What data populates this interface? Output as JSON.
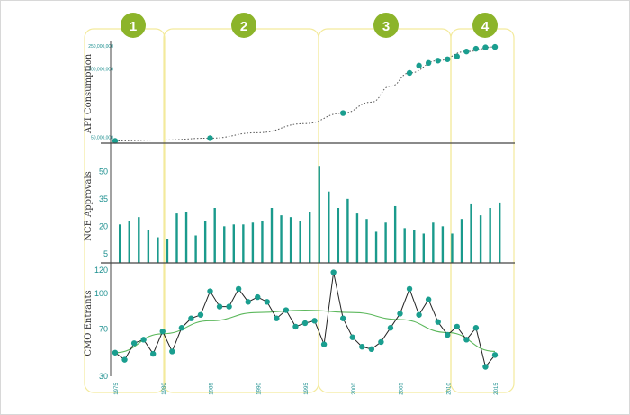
{
  "colors": {
    "teal": "#1a9e8f",
    "bar": "#1a9a8c",
    "trend": "#5cb85c",
    "region_border": "#f3ea9c",
    "badge": "#8cb42a"
  },
  "phase_labels": [
    "1",
    "2",
    "3",
    "4"
  ],
  "chart_data": [
    {
      "type": "scatter",
      "panel": "api",
      "ylabel": "API Consumption",
      "yticks": [
        "250,000,000",
        "200,000,000",
        "50,000,000"
      ],
      "ytick_values": [
        250000000,
        200000000,
        50000000
      ],
      "ylim": [
        35000000,
        260000000
      ],
      "xlim": [
        1975,
        2015
      ],
      "points": [
        {
          "x": 1975,
          "y": 40000000
        },
        {
          "x": 1985,
          "y": 46000000
        },
        {
          "x": 1999,
          "y": 101000000
        },
        {
          "x": 2006,
          "y": 189000000
        },
        {
          "x": 2007,
          "y": 205000000
        },
        {
          "x": 2008,
          "y": 211000000
        },
        {
          "x": 2009,
          "y": 216000000
        },
        {
          "x": 2010,
          "y": 219000000
        },
        {
          "x": 2011,
          "y": 225000000
        },
        {
          "x": 2012,
          "y": 236000000
        },
        {
          "x": 2013,
          "y": 242000000
        },
        {
          "x": 2014,
          "y": 245000000
        },
        {
          "x": 2015,
          "y": 246000000
        }
      ],
      "trend": [
        [
          1975,
          40000000
        ],
        [
          1980,
          42000000
        ],
        [
          1985,
          46000000
        ],
        [
          1990,
          58000000
        ],
        [
          1995,
          78000000
        ],
        [
          1999,
          101000000
        ],
        [
          2002,
          125000000
        ],
        [
          2004,
          160000000
        ],
        [
          2006,
          189000000
        ],
        [
          2009,
          216000000
        ],
        [
          2012,
          236000000
        ],
        [
          2015,
          246000000
        ]
      ]
    },
    {
      "type": "bar",
      "panel": "nce",
      "ylabel": "NCE Approvals",
      "yticks": [
        "50",
        "35",
        "20",
        "5"
      ],
      "ytick_values": [
        50,
        35,
        20,
        5
      ],
      "ylim": [
        0,
        60
      ],
      "categories": [
        1975,
        1976,
        1977,
        1978,
        1979,
        1980,
        1981,
        1982,
        1983,
        1984,
        1985,
        1986,
        1987,
        1988,
        1989,
        1990,
        1991,
        1992,
        1993,
        1994,
        1995,
        1996,
        1997,
        1998,
        1999,
        2000,
        2001,
        2002,
        2003,
        2004,
        2005,
        2006,
        2007,
        2008,
        2009,
        2010,
        2011,
        2012,
        2013,
        2014,
        2015
      ],
      "values": [
        21,
        23,
        25,
        18,
        14,
        13,
        27,
        28,
        15,
        23,
        30,
        20,
        21,
        21,
        22,
        23,
        30,
        26,
        25,
        23,
        28,
        53,
        39,
        30,
        35,
        27,
        24,
        17,
        22,
        31,
        19,
        18,
        16,
        22,
        20,
        16,
        24,
        32,
        26,
        30,
        33
      ]
    },
    {
      "type": "line",
      "panel": "cmo",
      "ylabel": "CMO Entrants",
      "yticks": [
        "120",
        "100",
        "70",
        "30"
      ],
      "ytick_values": [
        120,
        100,
        70,
        30
      ],
      "ylim": [
        30,
        123
      ],
      "xticks": [
        "1975",
        "1980",
        "1985",
        "1990",
        "1995",
        "2000",
        "2005",
        "2010",
        "2015"
      ],
      "xtick_values": [
        1975,
        1980,
        1985,
        1990,
        1995,
        2000,
        2005,
        2010,
        2015
      ],
      "x": [
        1975,
        1976,
        1977,
        1978,
        1979,
        1980,
        1981,
        1982,
        1983,
        1984,
        1985,
        1986,
        1987,
        1988,
        1989,
        1990,
        1991,
        1992,
        1993,
        1994,
        1995,
        1996,
        1997,
        1998,
        1999,
        2000,
        2001,
        2002,
        2003,
        2004,
        2005,
        2006,
        2007,
        2008,
        2009,
        2010,
        2011,
        2012,
        2013,
        2014,
        2015
      ],
      "values": [
        50,
        44,
        58,
        61,
        49,
        68,
        51,
        71,
        79,
        82,
        102,
        89,
        89,
        104,
        93,
        97,
        93,
        79,
        86,
        72,
        75,
        77,
        57,
        118,
        79,
        63,
        55,
        53,
        59,
        71,
        83,
        104,
        82,
        95,
        76,
        65,
        72,
        61,
        71,
        38,
        48
      ],
      "trend": [
        [
          1975,
          50
        ],
        [
          1980,
          66
        ],
        [
          1985,
          77
        ],
        [
          1990,
          84
        ],
        [
          1995,
          86
        ],
        [
          2000,
          84
        ],
        [
          2005,
          78
        ],
        [
          2010,
          67
        ],
        [
          2015,
          51
        ]
      ]
    }
  ]
}
